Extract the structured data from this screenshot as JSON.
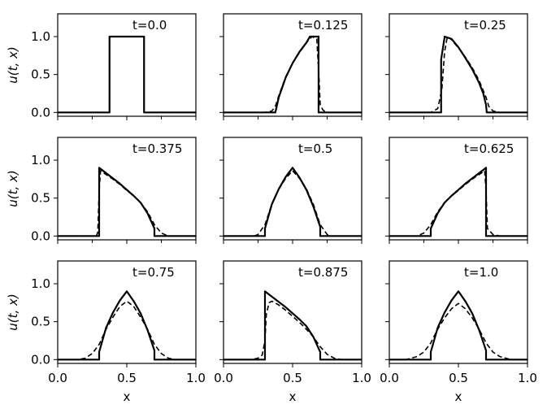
{
  "chart_data": {
    "type": "line",
    "layout": "3x3 grid of subplots",
    "shared_x": true,
    "shared_y": true,
    "xlabel": "x",
    "ylabel": "u(t, x)",
    "xlim": [
      0,
      1
    ],
    "ylim": [
      -0.05,
      1.3
    ],
    "xticks": [
      0,
      0.5,
      1.0
    ],
    "xtick_labels": [
      "0.0",
      "0.5",
      "1.0"
    ],
    "yticks": [
      0,
      0.5,
      1.0
    ],
    "ytick_labels": [
      "0.0",
      "0.5",
      "1.0"
    ],
    "grid": false,
    "legend": "none",
    "line_styles": {
      "exact": "solid",
      "approx": "dashed"
    },
    "color": "#000000",
    "panels": [
      {
        "label": "t=0.0",
        "series": [
          {
            "style": "solid",
            "x": [
              0,
              0.375,
              0.375,
              0.625,
              0.625,
              1
            ],
            "y": [
              0,
              0,
              1,
              1,
              0,
              0
            ]
          },
          {
            "style": "dashed",
            "x": [
              0,
              0.375,
              0.375,
              0.625,
              0.625,
              1
            ],
            "y": [
              0,
              0,
              1,
              1,
              0,
              0
            ]
          }
        ]
      },
      {
        "label": "t=0.125",
        "series": [
          {
            "style": "solid",
            "x": [
              0,
              0.375,
              0.4,
              0.45,
              0.5,
              0.55,
              0.6,
              0.625,
              0.688,
              0.688,
              0.7,
              1
            ],
            "y": [
              0,
              0,
              0.2,
              0.46,
              0.65,
              0.8,
              0.92,
              1,
              1,
              0,
              0,
              0
            ]
          },
          {
            "style": "dashed",
            "x": [
              0,
              0.3,
              0.35,
              0.375,
              0.4,
              0.45,
              0.5,
              0.55,
              0.6,
              0.64,
              0.675,
              0.69,
              0.7,
              0.72,
              0.75,
              1
            ],
            "y": [
              0,
              0,
              0.02,
              0.08,
              0.22,
              0.47,
              0.65,
              0.79,
              0.92,
              1,
              0.97,
              0.5,
              0.1,
              0.03,
              0,
              0
            ]
          }
        ]
      },
      {
        "label": "t=0.25",
        "series": [
          {
            "style": "solid",
            "x": [
              0,
              0.375,
              0.375,
              0.4,
              0.4,
              0.45,
              0.5,
              0.55,
              0.6,
              0.65,
              0.68,
              0.7,
              0.705,
              1
            ],
            "y": [
              0,
              0,
              0.7,
              0.99,
              1,
              0.97,
              0.86,
              0.72,
              0.57,
              0.39,
              0.25,
              0.1,
              0,
              0
            ]
          },
          {
            "style": "dashed",
            "x": [
              0,
              0.3,
              0.35,
              0.38,
              0.4,
              0.42,
              0.45,
              0.5,
              0.55,
              0.6,
              0.65,
              0.7,
              0.72,
              0.75,
              0.8,
              1
            ],
            "y": [
              0,
              0,
              0.05,
              0.3,
              0.8,
              1.0,
              0.96,
              0.85,
              0.73,
              0.59,
              0.42,
              0.2,
              0.08,
              0.02,
              0,
              0
            ]
          }
        ]
      },
      {
        "label": "t=0.375",
        "series": [
          {
            "style": "solid",
            "x": [
              0,
              0.3,
              0.3,
              0.35,
              0.4,
              0.45,
              0.5,
              0.55,
              0.6,
              0.65,
              0.7,
              0.7,
              1
            ],
            "y": [
              0,
              0,
              0.9,
              0.83,
              0.76,
              0.69,
              0.61,
              0.53,
              0.44,
              0.3,
              0.1,
              0,
              0
            ]
          },
          {
            "style": "dashed",
            "x": [
              0,
              0.28,
              0.29,
              0.3,
              0.31,
              0.35,
              0.4,
              0.45,
              0.5,
              0.55,
              0.6,
              0.65,
              0.7,
              0.75,
              0.8,
              1
            ],
            "y": [
              0,
              0,
              0.05,
              0.6,
              0.86,
              0.81,
              0.75,
              0.68,
              0.6,
              0.53,
              0.44,
              0.32,
              0.15,
              0.04,
              0,
              0
            ]
          }
        ]
      },
      {
        "label": "t=0.5",
        "series": [
          {
            "style": "solid",
            "x": [
              0,
              0.3,
              0.3,
              0.35,
              0.4,
              0.45,
              0.5,
              0.55,
              0.6,
              0.65,
              0.7,
              0.7,
              1
            ],
            "y": [
              0,
              0,
              0.1,
              0.42,
              0.62,
              0.78,
              0.9,
              0.77,
              0.61,
              0.39,
              0.12,
              0,
              0
            ]
          },
          {
            "style": "dashed",
            "x": [
              0,
              0.22,
              0.25,
              0.3,
              0.35,
              0.4,
              0.45,
              0.5,
              0.55,
              0.6,
              0.65,
              0.7,
              0.75,
              0.78,
              1
            ],
            "y": [
              0,
              0,
              0.02,
              0.15,
              0.42,
              0.62,
              0.76,
              0.86,
              0.76,
              0.62,
              0.42,
              0.15,
              0.02,
              0,
              0
            ]
          }
        ]
      },
      {
        "label": "t=0.625",
        "series": [
          {
            "style": "solid",
            "x": [
              0,
              0.3,
              0.3,
              0.35,
              0.4,
              0.45,
              0.5,
              0.55,
              0.6,
              0.65,
              0.7,
              0.7,
              1
            ],
            "y": [
              0,
              0,
              0.1,
              0.3,
              0.44,
              0.53,
              0.61,
              0.69,
              0.76,
              0.83,
              0.9,
              0,
              0
            ]
          },
          {
            "style": "dashed",
            "x": [
              0,
              0.2,
              0.25,
              0.3,
              0.35,
              0.4,
              0.45,
              0.5,
              0.55,
              0.6,
              0.65,
              0.69,
              0.7,
              0.71,
              0.75,
              0.8,
              1
            ],
            "y": [
              0,
              0,
              0.04,
              0.15,
              0.32,
              0.44,
              0.53,
              0.6,
              0.68,
              0.75,
              0.81,
              0.86,
              0.6,
              0.1,
              0.02,
              0,
              0
            ]
          }
        ]
      },
      {
        "label": "t=0.75",
        "series": [
          {
            "style": "solid",
            "x": [
              0,
              0.3,
              0.3,
              0.35,
              0.4,
              0.45,
              0.5,
              0.55,
              0.6,
              0.65,
              0.7,
              0.7,
              1
            ],
            "y": [
              0,
              0,
              0.1,
              0.42,
              0.62,
              0.78,
              0.9,
              0.77,
              0.61,
              0.39,
              0.12,
              0,
              0
            ]
          },
          {
            "style": "dashed",
            "x": [
              0,
              0.15,
              0.2,
              0.25,
              0.3,
              0.35,
              0.4,
              0.45,
              0.5,
              0.55,
              0.6,
              0.65,
              0.7,
              0.75,
              0.8,
              0.85,
              1
            ],
            "y": [
              0,
              0,
              0.02,
              0.08,
              0.2,
              0.4,
              0.56,
              0.7,
              0.77,
              0.7,
              0.56,
              0.4,
              0.2,
              0.08,
              0.02,
              0,
              0
            ]
          }
        ]
      },
      {
        "label": "t=0.875",
        "series": [
          {
            "style": "solid",
            "x": [
              0,
              0.3,
              0.3,
              0.35,
              0.4,
              0.45,
              0.5,
              0.55,
              0.6,
              0.65,
              0.7,
              0.7,
              1
            ],
            "y": [
              0,
              0,
              0.9,
              0.83,
              0.76,
              0.69,
              0.61,
              0.53,
              0.44,
              0.3,
              0.1,
              0,
              0
            ]
          },
          {
            "style": "dashed",
            "x": [
              0,
              0.2,
              0.25,
              0.28,
              0.3,
              0.31,
              0.33,
              0.35,
              0.4,
              0.45,
              0.5,
              0.55,
              0.6,
              0.65,
              0.7,
              0.75,
              0.8,
              0.85,
              1
            ],
            "y": [
              0,
              0,
              0.02,
              0.06,
              0.25,
              0.6,
              0.75,
              0.77,
              0.72,
              0.65,
              0.57,
              0.49,
              0.4,
              0.3,
              0.17,
              0.07,
              0.02,
              0,
              0
            ]
          }
        ]
      },
      {
        "label": "t=1.0",
        "series": [
          {
            "style": "solid",
            "x": [
              0,
              0.3,
              0.3,
              0.35,
              0.4,
              0.45,
              0.5,
              0.55,
              0.6,
              0.65,
              0.7,
              0.7,
              1
            ],
            "y": [
              0,
              0,
              0.1,
              0.42,
              0.62,
              0.78,
              0.9,
              0.77,
              0.61,
              0.39,
              0.12,
              0,
              0
            ]
          },
          {
            "style": "dashed",
            "x": [
              0,
              0.12,
              0.2,
              0.25,
              0.3,
              0.35,
              0.4,
              0.45,
              0.5,
              0.55,
              0.6,
              0.65,
              0.7,
              0.75,
              0.8,
              0.88,
              1
            ],
            "y": [
              0,
              0,
              0.04,
              0.1,
              0.22,
              0.4,
              0.55,
              0.67,
              0.74,
              0.67,
              0.55,
              0.4,
              0.22,
              0.1,
              0.04,
              0,
              0
            ]
          }
        ]
      }
    ]
  }
}
